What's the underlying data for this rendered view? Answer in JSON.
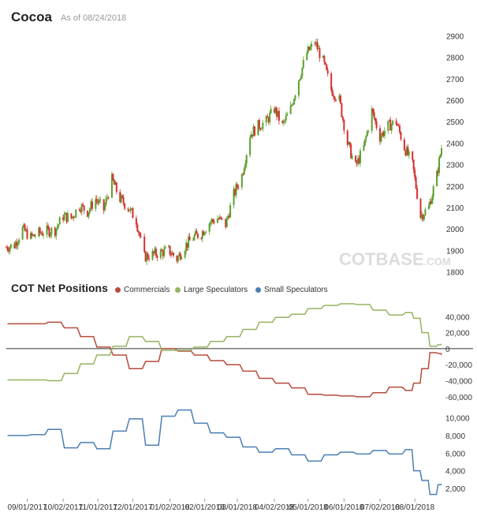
{
  "header": {
    "title": "Cocoa",
    "asof": "As of 08/24/2018"
  },
  "watermark": {
    "main": "COT",
    "sub": "BASE",
    "suffix": ".COM"
  },
  "cot": {
    "title": "COT Net Positions"
  },
  "chart_data": [
    {
      "type": "candlestick",
      "title": "Cocoa",
      "ylim": [
        1780,
        2920
      ],
      "yticks": [
        "2900",
        "2800",
        "2700",
        "2600",
        "2500",
        "2400",
        "2300",
        "2200",
        "2100",
        "2000",
        "1900",
        "1800"
      ],
      "colors": {
        "up": "#5aa02c",
        "down": "#d62f2f"
      },
      "x_range": [
        "08/14/2017",
        "08/24/2018"
      ],
      "close_path": [
        [
          "08/14/2017",
          1915
        ],
        [
          "08/21/2017",
          1925
        ],
        [
          "08/28/2017",
          2000
        ],
        [
          "09/04/2017",
          1960
        ],
        [
          "09/11/2017",
          1980
        ],
        [
          "09/18/2017",
          1990
        ],
        [
          "09/25/2017",
          1995
        ],
        [
          "10/02/2017",
          2060
        ],
        [
          "10/09/2017",
          2050
        ],
        [
          "10/16/2017",
          2110
        ],
        [
          "10/23/2017",
          2080
        ],
        [
          "10/30/2017",
          2140
        ],
        [
          "11/06/2017",
          2090
        ],
        [
          "11/13/2017",
          2230
        ],
        [
          "11/20/2017",
          2140
        ],
        [
          "11/27/2017",
          2100
        ],
        [
          "12/04/2017",
          2040
        ],
        [
          "12/11/2017",
          1870
        ],
        [
          "12/18/2017",
          1880
        ],
        [
          "12/25/2017",
          1890
        ],
        [
          "01/01/2018",
          1900
        ],
        [
          "01/08/2018",
          1860
        ],
        [
          "01/15/2018",
          1920
        ],
        [
          "01/22/2018",
          1960
        ],
        [
          "01/29/2018",
          1980
        ],
        [
          "02/05/2018",
          2030
        ],
        [
          "02/12/2018",
          2050
        ],
        [
          "02/19/2018",
          2020
        ],
        [
          "02/26/2018",
          2160
        ],
        [
          "03/05/2018",
          2250
        ],
        [
          "03/12/2018",
          2440
        ],
        [
          "03/19/2018",
          2480
        ],
        [
          "03/26/2018",
          2500
        ],
        [
          "04/02/2018",
          2560
        ],
        [
          "04/09/2018",
          2480
        ],
        [
          "04/16/2018",
          2560
        ],
        [
          "04/23/2018",
          2700
        ],
        [
          "04/30/2018",
          2820
        ],
        [
          "05/07/2018",
          2870
        ],
        [
          "05/14/2018",
          2780
        ],
        [
          "05/21/2018",
          2650
        ],
        [
          "05/28/2018",
          2600
        ],
        [
          "06/04/2018",
          2400
        ],
        [
          "06/11/2018",
          2290
        ],
        [
          "06/18/2018",
          2380
        ],
        [
          "06/25/2018",
          2550
        ],
        [
          "07/02/2018",
          2430
        ],
        [
          "07/09/2018",
          2480
        ],
        [
          "07/16/2018",
          2500
        ],
        [
          "07/23/2018",
          2380
        ],
        [
          "07/30/2018",
          2300
        ],
        [
          "08/06/2018",
          2060
        ],
        [
          "08/13/2018",
          2100
        ],
        [
          "08/20/2018",
          2250
        ],
        [
          "08/24/2018",
          2380
        ]
      ]
    },
    {
      "type": "line",
      "title": "COT Net Positions",
      "ylim": [
        -70000,
        58000
      ],
      "yticks": [
        "40,000",
        "20,000",
        "0",
        "-20,000",
        "-40,000",
        "-60,000"
      ],
      "zero_line": true,
      "series": [
        {
          "name": "Commercials",
          "color": "#b84a3b",
          "points": [
            [
              "08/15/2017",
              31000
            ],
            [
              "09/05/2017",
              31000
            ],
            [
              "09/19/2017",
              33000
            ],
            [
              "10/03/2017",
              26000
            ],
            [
              "10/17/2017",
              15000
            ],
            [
              "10/31/2017",
              2000
            ],
            [
              "11/14/2017",
              -8000
            ],
            [
              "11/28/2017",
              -25000
            ],
            [
              "12/12/2017",
              -16000
            ],
            [
              "12/26/2017",
              0
            ],
            [
              "01/09/2018",
              -3000
            ],
            [
              "01/23/2018",
              -8000
            ],
            [
              "02/06/2018",
              -15000
            ],
            [
              "02/20/2018",
              -20000
            ],
            [
              "03/06/2018",
              -28000
            ],
            [
              "03/20/2018",
              -37000
            ],
            [
              "04/03/2018",
              -43000
            ],
            [
              "04/17/2018",
              -49000
            ],
            [
              "05/01/2018",
              -57000
            ],
            [
              "05/15/2018",
              -58000
            ],
            [
              "05/29/2018",
              -59000
            ],
            [
              "06/12/2018",
              -60000
            ],
            [
              "06/26/2018",
              -55000
            ],
            [
              "07/10/2018",
              -48000
            ],
            [
              "07/24/2018",
              -52000
            ],
            [
              "07/31/2018",
              -43000
            ],
            [
              "08/07/2018",
              -25000
            ],
            [
              "08/14/2018",
              -5000
            ],
            [
              "08/21/2018",
              -6000
            ],
            [
              "08/24/2018",
              -8000
            ]
          ]
        },
        {
          "name": "Large Speculators",
          "color": "#94b460",
          "points": [
            [
              "08/15/2017",
              -39000
            ],
            [
              "09/05/2017",
              -39000
            ],
            [
              "09/19/2017",
              -40000
            ],
            [
              "10/03/2017",
              -31000
            ],
            [
              "10/17/2017",
              -19000
            ],
            [
              "10/31/2017",
              -8000
            ],
            [
              "11/14/2017",
              3000
            ],
            [
              "11/28/2017",
              15000
            ],
            [
              "12/12/2017",
              9000
            ],
            [
              "12/26/2017",
              -2000
            ],
            [
              "01/09/2018",
              -2000
            ],
            [
              "01/23/2018",
              2000
            ],
            [
              "02/06/2018",
              9000
            ],
            [
              "02/20/2018",
              15000
            ],
            [
              "03/06/2018",
              24000
            ],
            [
              "03/20/2018",
              33000
            ],
            [
              "04/03/2018",
              39000
            ],
            [
              "04/17/2018",
              43000
            ],
            [
              "05/01/2018",
              50000
            ],
            [
              "05/15/2018",
              54000
            ],
            [
              "05/29/2018",
              56000
            ],
            [
              "06/12/2018",
              55000
            ],
            [
              "06/26/2018",
              48000
            ],
            [
              "07/10/2018",
              42000
            ],
            [
              "07/24/2018",
              45000
            ],
            [
              "07/31/2018",
              38000
            ],
            [
              "08/07/2018",
              20000
            ],
            [
              "08/14/2018",
              3000
            ],
            [
              "08/21/2018",
              5000
            ],
            [
              "08/24/2018",
              6000
            ]
          ]
        },
        {
          "name": "Small Speculators",
          "color": "#4a7fb5",
          "points": [
            [
              "08/15/2017",
              8000
            ],
            [
              "09/05/2017",
              8100
            ],
            [
              "09/19/2017",
              8700
            ],
            [
              "10/03/2017",
              6600
            ],
            [
              "10/17/2017",
              7200
            ],
            [
              "10/31/2017",
              6500
            ],
            [
              "11/14/2017",
              8500
            ],
            [
              "11/28/2017",
              9900
            ],
            [
              "12/12/2017",
              6900
            ],
            [
              "12/26/2017",
              10200
            ],
            [
              "01/09/2018",
              10900
            ],
            [
              "01/23/2018",
              9400
            ],
            [
              "02/06/2018",
              8300
            ],
            [
              "02/20/2018",
              7800
            ],
            [
              "03/06/2018",
              6700
            ],
            [
              "03/20/2018",
              6100
            ],
            [
              "04/03/2018",
              6500
            ],
            [
              "04/17/2018",
              5800
            ],
            [
              "05/01/2018",
              5100
            ],
            [
              "05/15/2018",
              5800
            ],
            [
              "05/29/2018",
              6100
            ],
            [
              "06/12/2018",
              5900
            ],
            [
              "06/26/2018",
              6300
            ],
            [
              "07/10/2018",
              5900
            ],
            [
              "07/24/2018",
              6400
            ],
            [
              "07/31/2018",
              4000
            ],
            [
              "08/07/2018",
              2900
            ],
            [
              "08/14/2018",
              1300
            ],
            [
              "08/21/2018",
              2400
            ],
            [
              "08/24/2018",
              2500
            ]
          ]
        }
      ]
    },
    {
      "type": "line",
      "ylim": [
        1000,
        11500
      ],
      "yticks": [
        "10,000",
        "8,000",
        "6,000",
        "4,000",
        "2,000"
      ],
      "series_ref": "Small Speculators"
    }
  ],
  "xaxis": {
    "ticks": [
      "09/01/2017",
      "10/02/2017",
      "11/01/2017",
      "12/01/2017",
      "01/02/2018",
      "02/01/2018",
      "03/01/2018",
      "04/02/2018",
      "05/01/2018",
      "06/01/2018",
      "07/02/2018",
      "08/01/2018"
    ]
  }
}
